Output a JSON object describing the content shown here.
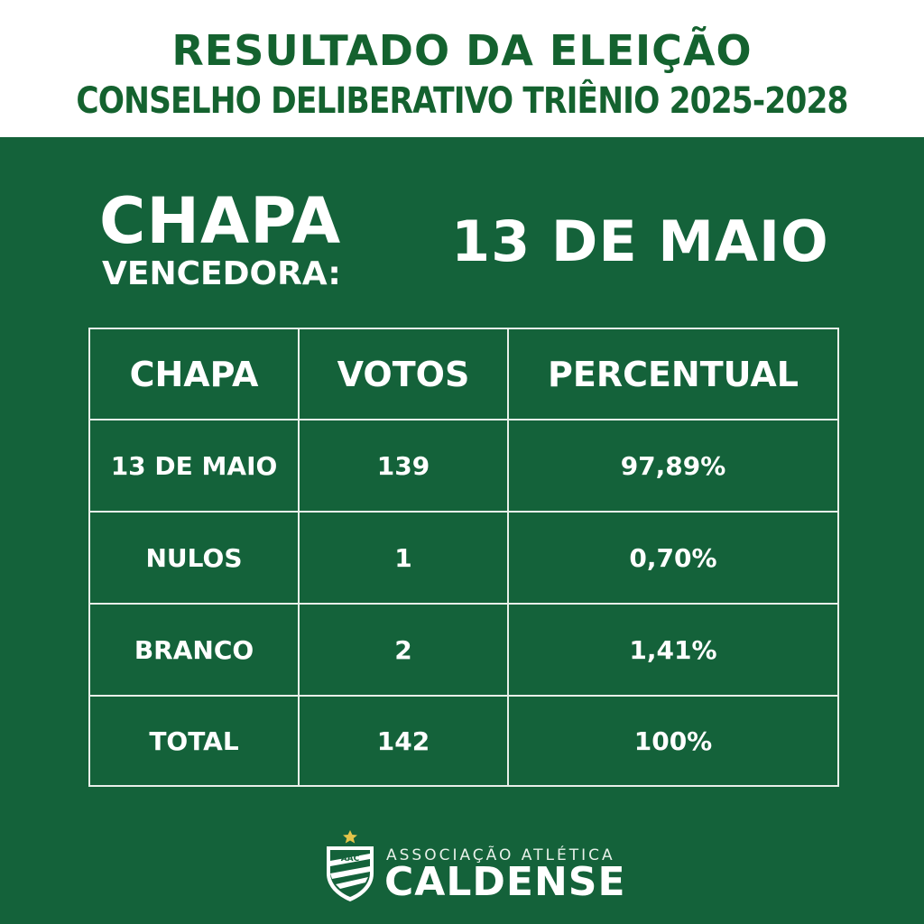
{
  "header": {
    "title_line1": "RESULTADO DA ELEIÇÃO",
    "title_line2": "CONSELHO DELIBERATIVO TRIÊNIO 2025-2028"
  },
  "winner": {
    "chapa_label": "CHAPA",
    "vencedora_label": "VENCEDORA:",
    "name": "13 DE MAIO"
  },
  "table": {
    "headers": [
      "CHAPA",
      "VOTOS",
      "PERCENTUAL"
    ],
    "rows": [
      [
        "13 DE MAIO",
        "139",
        "97,89%"
      ],
      [
        "NULOS",
        "1",
        "0,70%"
      ],
      [
        "BRANCO",
        "2",
        "1,41%"
      ],
      [
        "TOTAL",
        "142",
        "100%"
      ]
    ]
  },
  "logo": {
    "line1": "ASSOCIAÇÃO ATLÉTICA",
    "line2": "CALDENSE",
    "badge_text": "AAC",
    "icon": "caldense-crest-icon"
  },
  "colors": {
    "green_dark": "#14623a",
    "title_green": "#14622f",
    "white": "#ffffff",
    "star": "#e3c44a"
  }
}
